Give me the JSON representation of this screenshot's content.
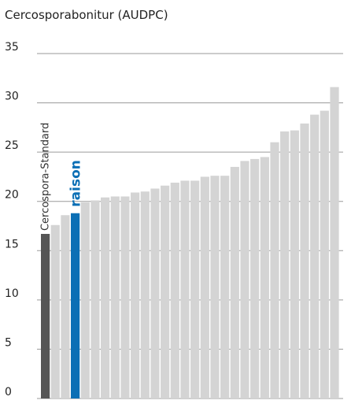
{
  "chart_data": {
    "type": "bar",
    "title": "Cercosporabonitur (AUDPC)",
    "xlabel": "",
    "ylabel": "",
    "ylim": [
      0,
      35
    ],
    "yticks": [
      0,
      5,
      10,
      15,
      20,
      25,
      30,
      35
    ],
    "grid": true,
    "values": [
      16.7,
      17.6,
      18.6,
      18.8,
      19.9,
      20.1,
      20.4,
      20.5,
      20.5,
      20.9,
      21.0,
      21.3,
      21.6,
      21.9,
      22.1,
      22.1,
      22.5,
      22.6,
      22.6,
      23.5,
      24.1,
      24.3,
      24.5,
      26.0,
      27.1,
      27.2,
      27.9,
      28.8,
      29.2,
      31.6
    ],
    "highlights": {
      "standard": {
        "index": 0,
        "label": "Cercospora-Standard",
        "color": "#555555"
      },
      "variety": {
        "index": 3,
        "label": "raison",
        "color": "#0b6fb5"
      }
    },
    "default_color": "#d4d4d4"
  }
}
